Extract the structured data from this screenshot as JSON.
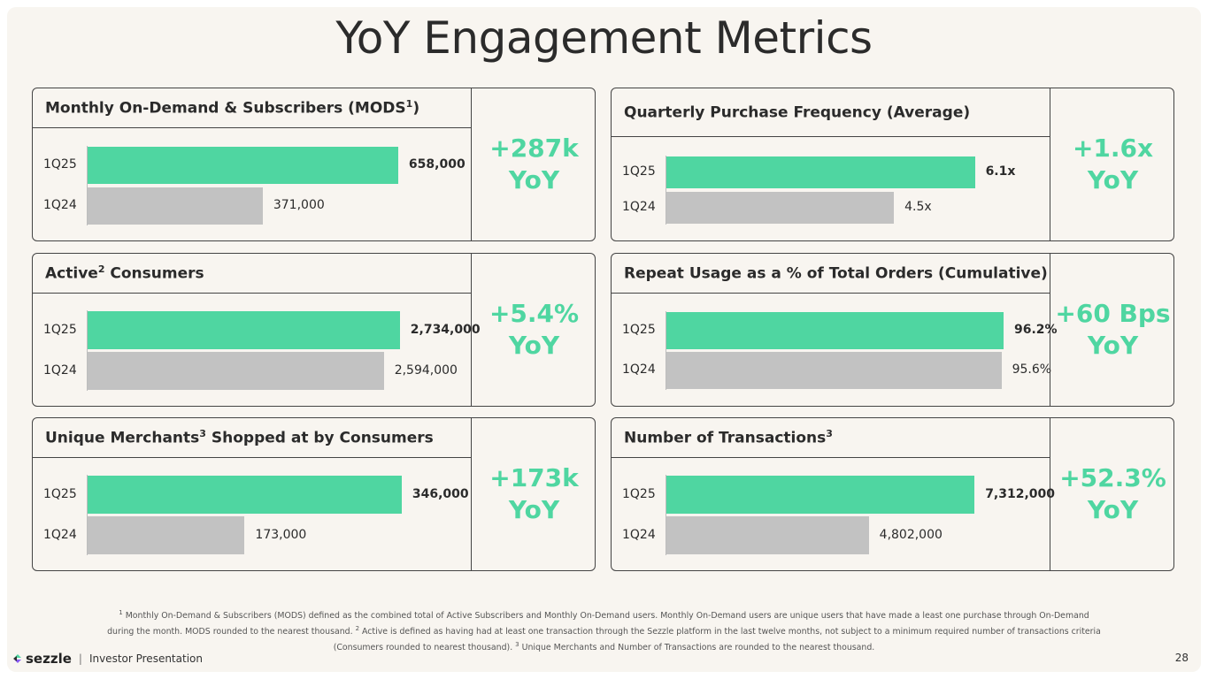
{
  "title": "YoY Engagement Metrics",
  "colors": {
    "current": "#4fd6a1",
    "previous": "#c2c2c2",
    "background": "#f8f5f0"
  },
  "chart_data": [
    {
      "type": "bar",
      "orientation": "horizontal",
      "title": "Monthly On-Demand & Subscribers (MODS",
      "title_sup": "1",
      "title_suffix": ")",
      "categories": [
        "1Q25",
        "1Q24"
      ],
      "values": [
        658000,
        371000
      ],
      "value_labels": [
        "658,000",
        "371,000"
      ],
      "xlim": [
        0,
        750000
      ],
      "yoy_line1": "+287k",
      "yoy_line2": "YoY"
    },
    {
      "type": "bar",
      "orientation": "horizontal",
      "title": "Quarterly Purchase Frequency (Average)",
      "title_sup": "",
      "title_suffix": "",
      "categories": [
        "1Q25",
        "1Q24"
      ],
      "values": [
        6.1,
        4.5
      ],
      "value_labels": [
        "6.1x",
        "4.5x"
      ],
      "xlim": [
        0,
        7.0
      ],
      "yoy_line1": "+1.6x",
      "yoy_line2": "YoY"
    },
    {
      "type": "bar",
      "orientation": "horizontal",
      "title": "Active",
      "title_sup": "2",
      "title_suffix": " Consumers",
      "categories": [
        "1Q25",
        "1Q24"
      ],
      "values": [
        2734000,
        2594000
      ],
      "value_labels": [
        "2,734,000",
        "2,594,000"
      ],
      "xlim": [
        0,
        3100000
      ],
      "yoy_line1": "+5.4%",
      "yoy_line2": "YoY"
    },
    {
      "type": "bar",
      "orientation": "horizontal",
      "title": "Repeat Usage as a % of Total Orders (Cumulative)",
      "title_sup": "",
      "title_suffix": "",
      "categories": [
        "1Q25",
        "1Q24"
      ],
      "values": [
        96.2,
        95.6
      ],
      "value_labels": [
        "96.2%",
        "95.6%"
      ],
      "xlim": [
        0,
        101
      ],
      "yoy_line1": "+60 Bps",
      "yoy_line2": "YoY"
    },
    {
      "type": "bar",
      "orientation": "horizontal",
      "title": "Unique Merchants",
      "title_sup": "3",
      "title_suffix": " Shopped at by Consumers",
      "categories": [
        "1Q25",
        "1Q24"
      ],
      "values": [
        346000,
        173000
      ],
      "value_labels": [
        "346,000",
        "173,000"
      ],
      "xlim": [
        0,
        390000
      ],
      "yoy_line1": "+173k",
      "yoy_line2": "YoY"
    },
    {
      "type": "bar",
      "orientation": "horizontal",
      "title": "Number of Transactions",
      "title_sup": "3",
      "title_suffix": "",
      "categories": [
        "1Q25",
        "1Q24"
      ],
      "values": [
        7312000,
        4802000
      ],
      "value_labels": [
        "7,312,000",
        "4,802,000"
      ],
      "xlim": [
        0,
        8400000
      ],
      "yoy_line1": "+52.3%",
      "yoy_line2": "YoY"
    }
  ],
  "footnote": {
    "sup1": "1",
    "text1": " Monthly On-Demand & Subscribers (MODS) defined as the combined total of Active Subscribers and Monthly On-Demand users. Monthly On-Demand users are unique users that have made a least one purchase through On-Demand during the month. MODS rounded to the nearest thousand. ",
    "sup2": "2",
    "text2": " Active is defined as having had at least one transaction through the Sezzle platform in the last twelve months, not subject to a minimum required number of transactions criteria (Consumers rounded to nearest thousand). ",
    "sup3": "3",
    "text3": " Unique Merchants and Number of Transactions are rounded to the nearest thousand."
  },
  "brand": {
    "logo": "sezzle",
    "separator": "|",
    "caption": "Investor Presentation",
    "logo_icon": "sezzle-logo-icon"
  },
  "page_number": "28"
}
